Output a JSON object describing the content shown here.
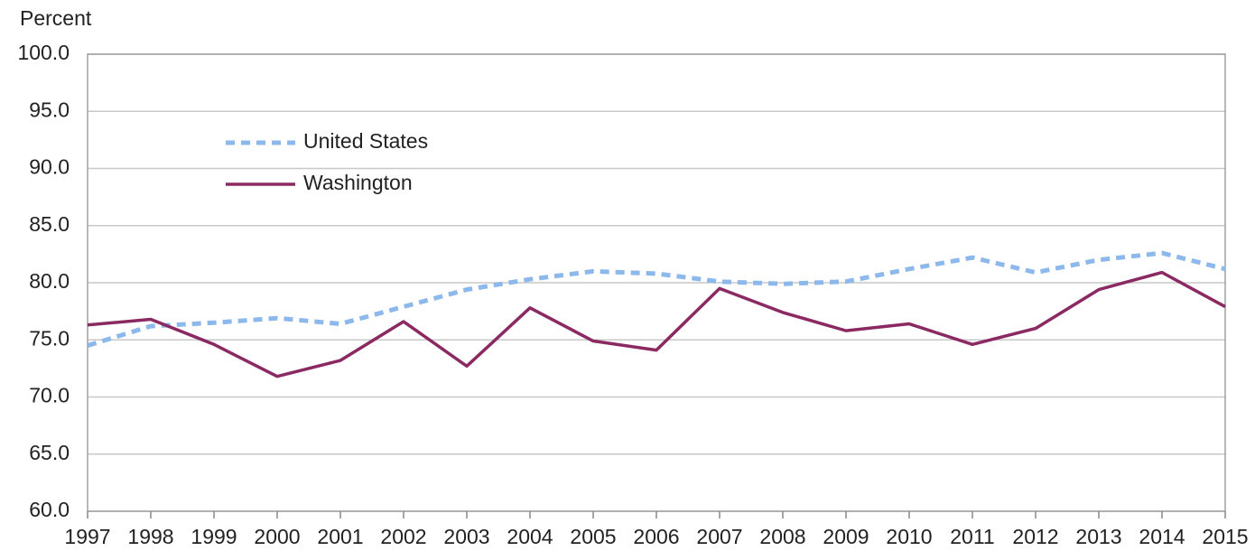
{
  "chart_data": {
    "type": "line",
    "y_label": "Percent",
    "x": [
      1997,
      1998,
      1999,
      2000,
      2001,
      2002,
      2003,
      2004,
      2005,
      2006,
      2007,
      2008,
      2009,
      2010,
      2011,
      2012,
      2013,
      2014,
      2015
    ],
    "xlim": [
      1997,
      2015
    ],
    "xticks": [
      1997,
      1998,
      1999,
      2000,
      2001,
      2002,
      2003,
      2004,
      2005,
      2006,
      2007,
      2008,
      2009,
      2010,
      2011,
      2012,
      2013,
      2014,
      2015
    ],
    "ylim": [
      60,
      100
    ],
    "yticks": [
      {
        "value": 60,
        "label": "60.0"
      },
      {
        "value": 65,
        "label": "65.0"
      },
      {
        "value": 70,
        "label": "70.0"
      },
      {
        "value": 75,
        "label": "75.0"
      },
      {
        "value": 80,
        "label": "80.0"
      },
      {
        "value": 85,
        "label": "85.0"
      },
      {
        "value": 90,
        "label": "90.0"
      },
      {
        "value": 95,
        "label": "95.0"
      },
      {
        "value": 100,
        "label": "100.0"
      }
    ],
    "grid": true,
    "legend": "upper left",
    "series": [
      {
        "name": "United States",
        "color": "#8db8ec",
        "style": "dashed",
        "values": [
          74.5,
          76.2,
          76.5,
          76.9,
          76.4,
          77.9,
          79.4,
          80.3,
          81.0,
          80.8,
          80.1,
          79.9,
          80.1,
          81.2,
          82.2,
          80.9,
          82.0,
          82.6,
          81.2
        ]
      },
      {
        "name": "Washington",
        "color": "#8b2a62",
        "style": "solid",
        "values": [
          76.3,
          76.8,
          74.6,
          71.8,
          73.2,
          76.6,
          72.7,
          77.8,
          74.9,
          74.1,
          79.5,
          77.4,
          75.8,
          76.4,
          74.6,
          76.0,
          79.4,
          80.9,
          77.9
        ]
      }
    ]
  }
}
